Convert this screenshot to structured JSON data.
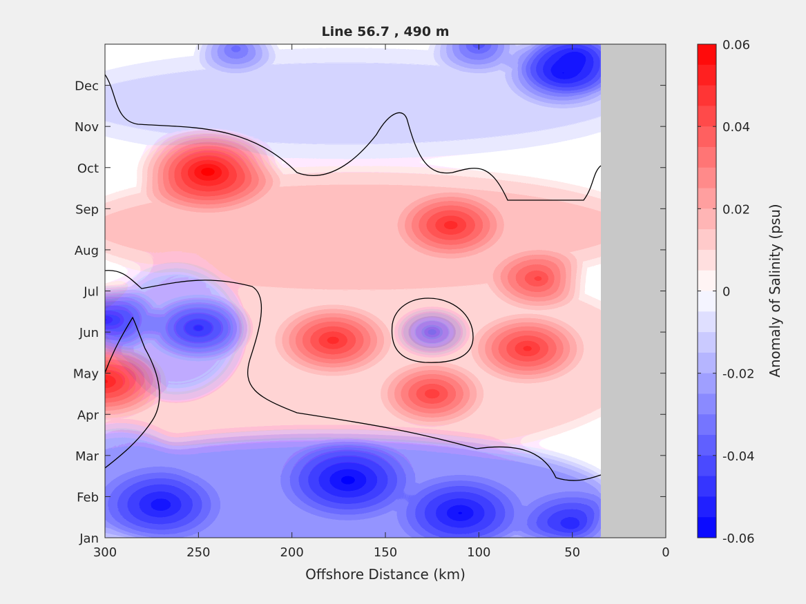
{
  "chart_data": {
    "type": "heatmap",
    "title": "Line 56.7 , 490 m",
    "xlabel": "Offshore Distance (km)",
    "ylabel": "",
    "x_ticks": [
      "300",
      "250",
      "200",
      "150",
      "100",
      "50",
      "0"
    ],
    "x_tick_values": [
      300,
      250,
      200,
      150,
      100,
      50,
      0
    ],
    "xlim": [
      300,
      0
    ],
    "x_reversed": true,
    "y_ticks": [
      "Jan",
      "Feb",
      "Mar",
      "Apr",
      "May",
      "Jun",
      "Jul",
      "Aug",
      "Sep",
      "Oct",
      "Nov",
      "Dec"
    ],
    "ylim": [
      0,
      12
    ],
    "data_x_range": [
      35,
      300
    ],
    "no_data_x_range": [
      0,
      35
    ],
    "contour_line_level": 0,
    "colorbar": {
      "label": "Anomaly of Salinity (psu)",
      "ticks": [
        "0.06",
        "0.04",
        "0.02",
        "0",
        "-0.02",
        "-0.04",
        "-0.06"
      ],
      "tick_values": [
        0.06,
        0.04,
        0.02,
        0,
        -0.02,
        -0.04,
        -0.06
      ],
      "range": [
        -0.06,
        0.06
      ],
      "levels": 24
    },
    "features": [
      {
        "x": 245,
        "month": 8.9,
        "value": 0.06
      },
      {
        "x": 115,
        "month": 7.6,
        "value": 0.04
      },
      {
        "x": 300,
        "month": 3.8,
        "value": 0.045
      },
      {
        "x": 178,
        "month": 4.8,
        "value": 0.04
      },
      {
        "x": 74,
        "month": 4.6,
        "value": 0.038
      },
      {
        "x": 125,
        "month": 3.5,
        "value": 0.032
      },
      {
        "x": 68,
        "month": 6.3,
        "value": 0.03
      },
      {
        "x": 250,
        "month": 5.1,
        "value": -0.035
      },
      {
        "x": 125,
        "month": 5.0,
        "value": -0.015
      },
      {
        "x": 300,
        "month": 5.3,
        "value": -0.04
      },
      {
        "x": 170,
        "month": 1.4,
        "value": -0.055
      },
      {
        "x": 110,
        "month": 0.6,
        "value": -0.05
      },
      {
        "x": 270,
        "month": 0.8,
        "value": -0.045
      },
      {
        "x": 50,
        "month": 0.3,
        "value": -0.04
      },
      {
        "x": 55,
        "month": 11.3,
        "value": -0.045
      },
      {
        "x": 48,
        "month": 11.7,
        "value": -0.045
      },
      {
        "x": 230,
        "month": 11.9,
        "value": -0.02
      },
      {
        "x": 100,
        "month": 12.0,
        "value": -0.03
      }
    ]
  }
}
